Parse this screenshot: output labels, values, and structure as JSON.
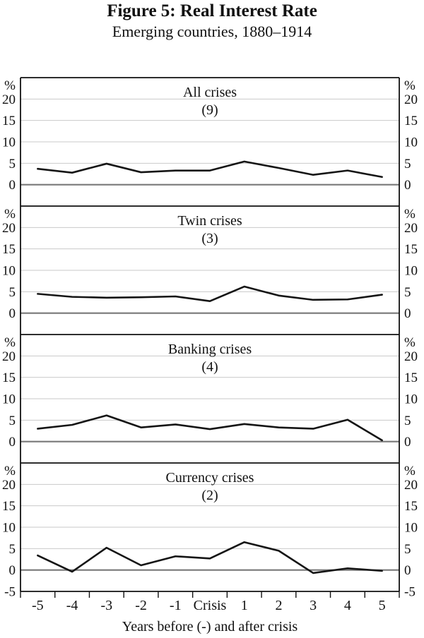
{
  "figure": {
    "title": "Figure 5: Real Interest Rate",
    "subtitle": "Emerging countries, 1880–1914"
  },
  "chart_data": {
    "type": "line",
    "title": "Figure 5: Real Interest Rate",
    "subtitle": "Emerging countries, 1880–1914",
    "unit_symbol": "%",
    "xlabel": "Years before (-) and after crisis",
    "x_categories": [
      "-5",
      "-4",
      "-3",
      "-2",
      "-1",
      "Crisis",
      "1",
      "2",
      "3",
      "4",
      "5"
    ],
    "grid": true,
    "legend": false,
    "line_color": "#151515",
    "gridline_color": "#c9c9c9",
    "zero_line_color": "#787878",
    "border_color": "#111111",
    "panels": [
      {
        "title": "All crises",
        "count_label": "(9)",
        "ylim": [
          -5,
          25
        ],
        "yticks_labeled": [
          0,
          5,
          10,
          15,
          20
        ],
        "values": [
          3.7,
          2.8,
          4.9,
          2.9,
          3.3,
          3.3,
          5.4,
          3.9,
          2.3,
          3.3,
          1.8
        ]
      },
      {
        "title": "Twin crises",
        "count_label": "(3)",
        "ylim": [
          -5,
          25
        ],
        "yticks_labeled": [
          0,
          5,
          10,
          15,
          20
        ],
        "values": [
          4.5,
          3.8,
          3.6,
          3.7,
          3.9,
          2.8,
          6.2,
          4.1,
          3.1,
          3.2,
          4.3
        ]
      },
      {
        "title": "Banking crises",
        "count_label": "(4)",
        "ylim": [
          -5,
          25
        ],
        "yticks_labeled": [
          0,
          5,
          10,
          15,
          20
        ],
        "values": [
          3.0,
          3.9,
          6.1,
          3.3,
          4.0,
          2.9,
          4.1,
          3.3,
          3.0,
          5.1,
          0.3
        ]
      },
      {
        "title": "Currency crises",
        "count_label": "(2)",
        "ylim": [
          -5,
          25
        ],
        "yticks_labeled": [
          -5,
          0,
          5,
          10,
          15,
          20
        ],
        "values": [
          3.4,
          -0.4,
          5.2,
          1.1,
          3.2,
          2.7,
          6.5,
          4.5,
          -0.7,
          0.4,
          -0.2
        ]
      }
    ]
  }
}
